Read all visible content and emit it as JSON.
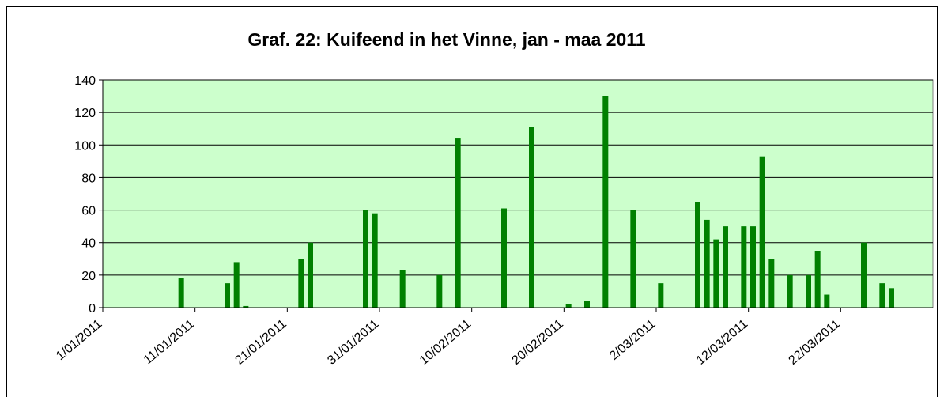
{
  "chart_data": {
    "type": "bar",
    "title": "Graf. 22: Kuifeend in het Vinne, jan - maa 2011",
    "x": [
      "9/01/2011",
      "14/01/2011",
      "15/01/2011",
      "16/01/2011",
      "22/01/2011",
      "23/01/2011",
      "29/01/2011",
      "30/01/2011",
      "2/02/2011",
      "6/02/2011",
      "8/02/2011",
      "13/02/2011",
      "16/02/2011",
      "20/02/2011",
      "22/02/2011",
      "24/02/2011",
      "27/02/2011",
      "2/03/2011",
      "6/03/2011",
      "7/03/2011",
      "8/03/2011",
      "9/03/2011",
      "11/03/2011",
      "12/03/2011",
      "13/03/2011",
      "14/03/2011",
      "16/03/2011",
      "18/03/2011",
      "19/03/2011",
      "20/03/2011",
      "24/03/2011",
      "26/03/2011",
      "27/03/2011"
    ],
    "values": [
      18,
      15,
      28,
      1,
      30,
      40,
      60,
      58,
      23,
      20,
      104,
      61,
      111,
      2,
      4,
      130,
      60,
      15,
      65,
      54,
      42,
      50,
      50,
      50,
      93,
      30,
      20,
      20,
      35,
      8,
      40,
      15,
      12
    ],
    "color": "#008000",
    "plot_color": "#ccffcc",
    "xlim": [
      "1/01/2011",
      "1/04/2011"
    ],
    "xticks": [
      "1/01/2011",
      "11/01/2011",
      "21/01/2011",
      "31/01/2011",
      "10/02/2011",
      "20/02/2011",
      "2/03/2011",
      "12/03/2011",
      "22/03/2011"
    ],
    "ylim": [
      0,
      140
    ],
    "yticks": [
      0,
      20,
      40,
      60,
      80,
      100,
      120,
      140
    ],
    "grid": true
  }
}
